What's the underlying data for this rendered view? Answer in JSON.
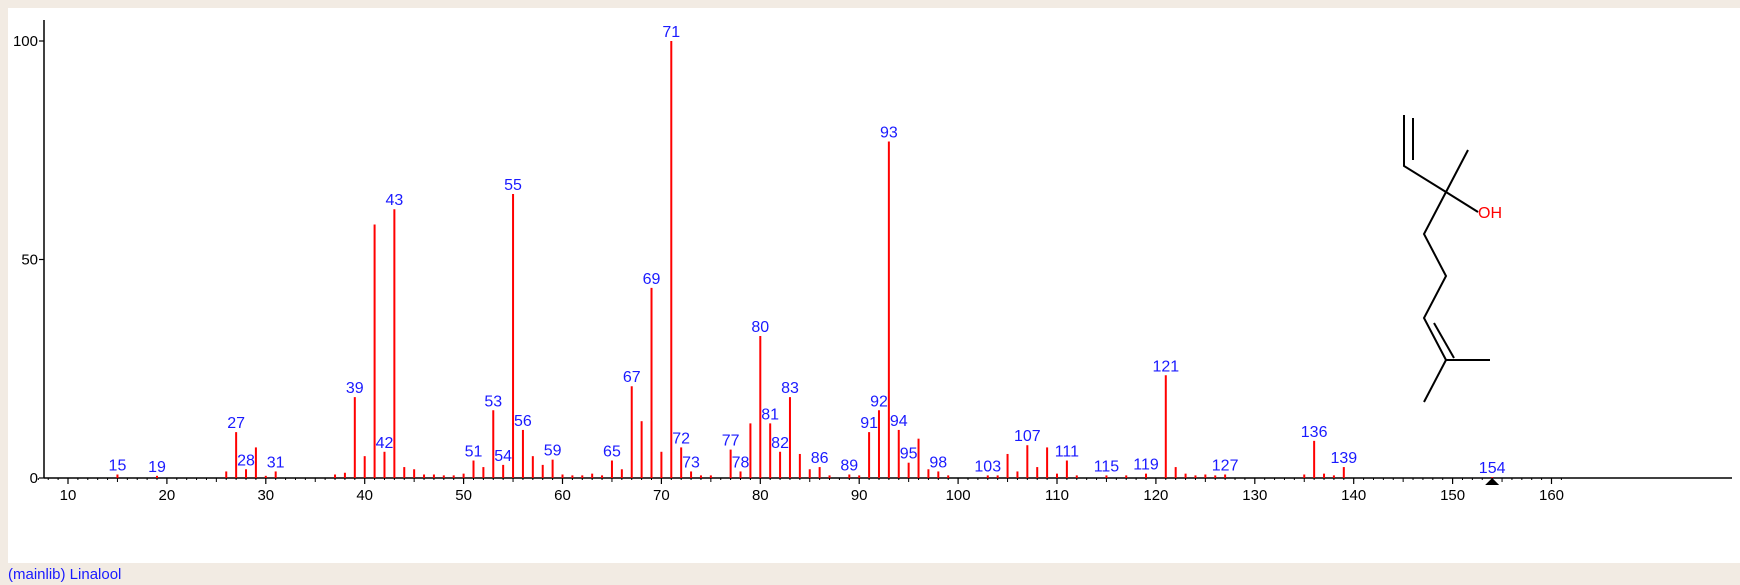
{
  "caption": "(mainlib) Linalool",
  "colors": {
    "peak": "#ff0000",
    "peak_label": "#1a1aff",
    "axis": "#000000",
    "structure_line": "#000000",
    "heteroatom": "#ff0000"
  },
  "structure": {
    "oh_label": "OH"
  },
  "marker": {
    "shape": "triangle-up",
    "x": 154
  },
  "chart_data": {
    "type": "bar",
    "title": "",
    "xlabel": "",
    "ylabel": "",
    "xlim": [
      7,
      161
    ],
    "ylim": [
      0,
      100
    ],
    "x_ticks": [
      10,
      20,
      30,
      40,
      50,
      60,
      70,
      80,
      90,
      100,
      110,
      120,
      130,
      140,
      150,
      160
    ],
    "y_ticks": [
      0,
      50,
      100
    ],
    "grid": false,
    "legend": "none",
    "peaks": [
      {
        "mz": 15,
        "intensity": 0.8,
        "label": "15"
      },
      {
        "mz": 19,
        "intensity": 0.5,
        "label": "19"
      },
      {
        "mz": 26,
        "intensity": 1.5
      },
      {
        "mz": 27,
        "intensity": 10.5,
        "label": "27"
      },
      {
        "mz": 28,
        "intensity": 2.0,
        "label": "28"
      },
      {
        "mz": 29,
        "intensity": 7.0
      },
      {
        "mz": 30,
        "intensity": 0.5
      },
      {
        "mz": 31,
        "intensity": 1.5,
        "label": "31"
      },
      {
        "mz": 37,
        "intensity": 0.8
      },
      {
        "mz": 38,
        "intensity": 1.2
      },
      {
        "mz": 39,
        "intensity": 18.5,
        "label": "39"
      },
      {
        "mz": 40,
        "intensity": 5.0
      },
      {
        "mz": 41,
        "intensity": 58.0
      },
      {
        "mz": 42,
        "intensity": 6.0,
        "label": "42"
      },
      {
        "mz": 43,
        "intensity": 61.5,
        "label": "43"
      },
      {
        "mz": 44,
        "intensity": 2.5
      },
      {
        "mz": 45,
        "intensity": 2.0
      },
      {
        "mz": 46,
        "intensity": 0.8
      },
      {
        "mz": 47,
        "intensity": 0.8
      },
      {
        "mz": 48,
        "intensity": 0.6
      },
      {
        "mz": 49,
        "intensity": 0.6
      },
      {
        "mz": 50,
        "intensity": 1.0
      },
      {
        "mz": 51,
        "intensity": 4.0,
        "label": "51"
      },
      {
        "mz": 52,
        "intensity": 2.5
      },
      {
        "mz": 53,
        "intensity": 15.5,
        "label": "53"
      },
      {
        "mz": 54,
        "intensity": 3.0,
        "label": "54"
      },
      {
        "mz": 55,
        "intensity": 65.0,
        "label": "55"
      },
      {
        "mz": 56,
        "intensity": 11.0,
        "label": "56"
      },
      {
        "mz": 57,
        "intensity": 5.0
      },
      {
        "mz": 58,
        "intensity": 3.0
      },
      {
        "mz": 59,
        "intensity": 4.2,
        "label": "59"
      },
      {
        "mz": 60,
        "intensity": 0.8
      },
      {
        "mz": 61,
        "intensity": 0.6
      },
      {
        "mz": 62,
        "intensity": 0.6
      },
      {
        "mz": 63,
        "intensity": 1.0
      },
      {
        "mz": 64,
        "intensity": 0.6
      },
      {
        "mz": 65,
        "intensity": 4.0,
        "label": "65"
      },
      {
        "mz": 66,
        "intensity": 2.0
      },
      {
        "mz": 67,
        "intensity": 21.0,
        "label": "67"
      },
      {
        "mz": 68,
        "intensity": 13.0
      },
      {
        "mz": 69,
        "intensity": 43.5,
        "label": "69"
      },
      {
        "mz": 70,
        "intensity": 6.0
      },
      {
        "mz": 71,
        "intensity": 100.0,
        "label": "71"
      },
      {
        "mz": 72,
        "intensity": 7.0,
        "label": "72"
      },
      {
        "mz": 73,
        "intensity": 1.5,
        "label": "73"
      },
      {
        "mz": 74,
        "intensity": 0.6
      },
      {
        "mz": 75,
        "intensity": 0.6
      },
      {
        "mz": 77,
        "intensity": 6.5,
        "label": "77"
      },
      {
        "mz": 78,
        "intensity": 1.5,
        "label": "78"
      },
      {
        "mz": 79,
        "intensity": 12.5
      },
      {
        "mz": 80,
        "intensity": 32.5,
        "label": "80"
      },
      {
        "mz": 81,
        "intensity": 12.5,
        "label": "81"
      },
      {
        "mz": 82,
        "intensity": 6.0,
        "label": "82"
      },
      {
        "mz": 83,
        "intensity": 18.5,
        "label": "83"
      },
      {
        "mz": 84,
        "intensity": 5.5
      },
      {
        "mz": 85,
        "intensity": 2.0
      },
      {
        "mz": 86,
        "intensity": 2.5,
        "label": "86"
      },
      {
        "mz": 87,
        "intensity": 0.6
      },
      {
        "mz": 89,
        "intensity": 0.8,
        "label": "89"
      },
      {
        "mz": 90,
        "intensity": 0.6
      },
      {
        "mz": 91,
        "intensity": 10.5,
        "label": "91"
      },
      {
        "mz": 92,
        "intensity": 15.5,
        "label": "92"
      },
      {
        "mz": 93,
        "intensity": 77.0,
        "label": "93"
      },
      {
        "mz": 94,
        "intensity": 11.0,
        "label": "94"
      },
      {
        "mz": 95,
        "intensity": 3.5,
        "label": "95"
      },
      {
        "mz": 96,
        "intensity": 9.0
      },
      {
        "mz": 97,
        "intensity": 2.0
      },
      {
        "mz": 98,
        "intensity": 1.5,
        "label": "98"
      },
      {
        "mz": 99,
        "intensity": 0.6
      },
      {
        "mz": 103,
        "intensity": 0.6,
        "label": "103"
      },
      {
        "mz": 104,
        "intensity": 0.6
      },
      {
        "mz": 105,
        "intensity": 5.5
      },
      {
        "mz": 106,
        "intensity": 1.5
      },
      {
        "mz": 107,
        "intensity": 7.5,
        "label": "107"
      },
      {
        "mz": 108,
        "intensity": 2.5
      },
      {
        "mz": 109,
        "intensity": 7.0
      },
      {
        "mz": 110,
        "intensity": 1.0
      },
      {
        "mz": 111,
        "intensity": 4.0,
        "label": "111"
      },
      {
        "mz": 112,
        "intensity": 0.6
      },
      {
        "mz": 115,
        "intensity": 0.6,
        "label": "115"
      },
      {
        "mz": 117,
        "intensity": 0.6
      },
      {
        "mz": 119,
        "intensity": 1.0,
        "label": "119"
      },
      {
        "mz": 121,
        "intensity": 23.5,
        "label": "121"
      },
      {
        "mz": 122,
        "intensity": 2.5
      },
      {
        "mz": 123,
        "intensity": 1.0
      },
      {
        "mz": 124,
        "intensity": 0.6
      },
      {
        "mz": 125,
        "intensity": 0.8
      },
      {
        "mz": 126,
        "intensity": 0.6
      },
      {
        "mz": 127,
        "intensity": 0.8,
        "label": "127"
      },
      {
        "mz": 135,
        "intensity": 0.8
      },
      {
        "mz": 136,
        "intensity": 8.5,
        "label": "136"
      },
      {
        "mz": 137,
        "intensity": 1.0
      },
      {
        "mz": 138,
        "intensity": 0.6
      },
      {
        "mz": 139,
        "intensity": 2.5,
        "label": "139"
      },
      {
        "mz": 154,
        "intensity": 0.2,
        "label": "154"
      }
    ]
  }
}
